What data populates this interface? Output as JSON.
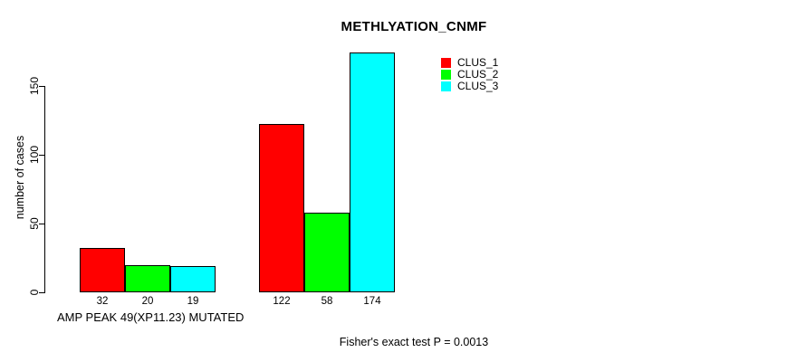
{
  "chart_data": {
    "type": "bar",
    "title": "METHLYATION_CNMF",
    "ylabel": "number of cases",
    "xlabel": "AMP PEAK 49(XP11.23) MUTATED",
    "annotation": "Fisher's exact test P = 0.0013",
    "categories": [
      "",
      ""
    ],
    "series": [
      {
        "name": "CLUS_1",
        "color": "#ff0000",
        "values": [
          32,
          122
        ]
      },
      {
        "name": "CLUS_2",
        "color": "#00ff00",
        "values": [
          20,
          58
        ]
      },
      {
        "name": "CLUS_3",
        "color": "#00ffff",
        "values": [
          19,
          174
        ]
      }
    ],
    "yticks": [
      0,
      50,
      100,
      150
    ],
    "ylim": [
      0,
      175
    ],
    "grid": false,
    "legend_position": "top-right",
    "bar_value_labels": true
  },
  "colors": {
    "background": "#ffffff",
    "axis": "#000000",
    "text": "#000000"
  }
}
